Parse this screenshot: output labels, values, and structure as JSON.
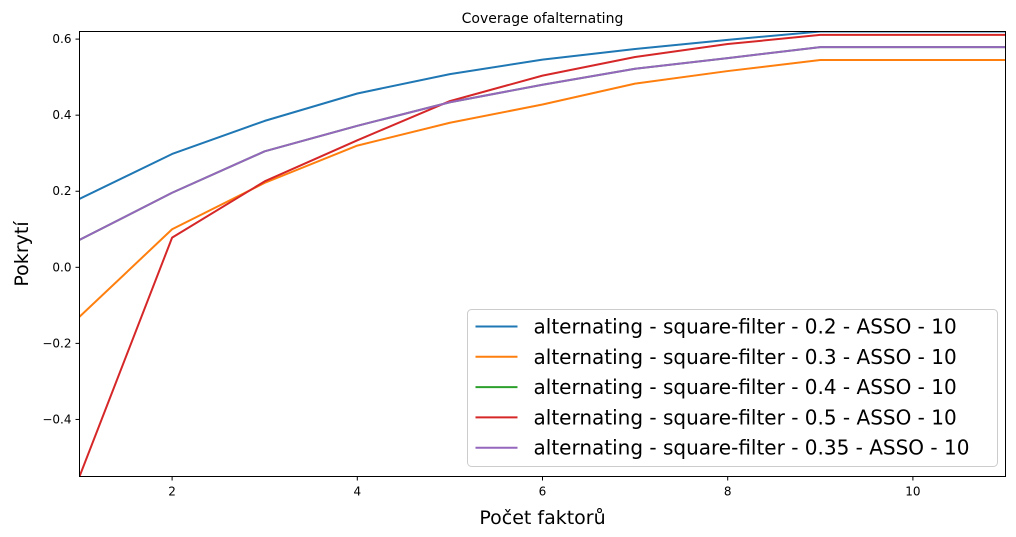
{
  "chart_data": {
    "type": "line",
    "title": "Coverage ofalternating",
    "xlabel": "Počet faktorů",
    "ylabel": "Pokrytí",
    "xlim": [
      1,
      11
    ],
    "ylim": [
      -0.55,
      0.62
    ],
    "xticks": [
      2,
      4,
      6,
      8,
      10
    ],
    "yticks": [
      -0.4,
      -0.2,
      0.0,
      0.2,
      0.4,
      0.6
    ],
    "ytick_labels": [
      "−0.4",
      "−0.2",
      "0.0",
      "0.2",
      "0.4",
      "0.6"
    ],
    "x": [
      1,
      2,
      3,
      4,
      5,
      6,
      7,
      8,
      9,
      10,
      11
    ],
    "grid": false,
    "legend_position": "lower-right",
    "series": [
      {
        "name": "alternating - square-filter - 0.2 - ASSO - 10",
        "color": "#1f77b4",
        "values": [
          0.18,
          0.298,
          0.385,
          0.457,
          0.508,
          0.546,
          0.574,
          0.598,
          0.62,
          0.62,
          0.62
        ]
      },
      {
        "name": "alternating - square-filter - 0.3 - ASSO - 10",
        "color": "#ff7f0e",
        "values": [
          -0.13,
          0.1,
          0.222,
          0.32,
          0.38,
          0.428,
          0.483,
          0.516,
          0.545,
          0.545,
          0.545
        ]
      },
      {
        "name": "alternating - square-filter - 0.4 - ASSO - 10",
        "color": "#2ca02c",
        "values": [
          0.072,
          0.196,
          0.305,
          0.372,
          0.434,
          0.48,
          0.522,
          0.55,
          0.579,
          0.579,
          0.579
        ]
      },
      {
        "name": "alternating - square-filter - 0.5 - ASSO - 10",
        "color": "#d62728",
        "values": [
          -0.55,
          0.078,
          0.226,
          0.334,
          0.437,
          0.504,
          0.553,
          0.587,
          0.611,
          0.611,
          0.611
        ]
      },
      {
        "name": "alternating - square-filter - 0.35 - ASSO - 10",
        "color": "#9467bd",
        "values": [
          0.072,
          0.196,
          0.305,
          0.372,
          0.434,
          0.48,
          0.522,
          0.55,
          0.579,
          0.579,
          0.579
        ]
      }
    ]
  }
}
